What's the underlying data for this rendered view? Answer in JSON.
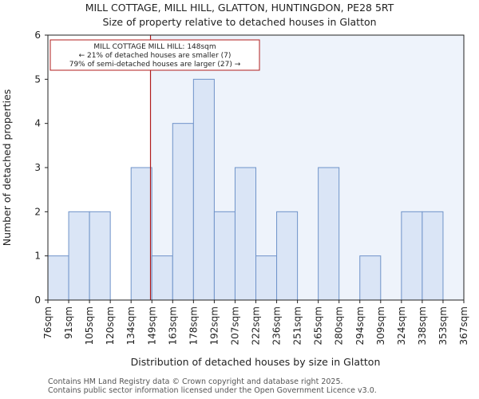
{
  "chart_data": {
    "type": "bar",
    "title": "MILL COTTAGE, MILL HILL, GLATTON, HUNTINGDON, PE28 5RT",
    "subtitle": "Size of property relative to detached houses in Glatton",
    "xlabel": "Distribution of detached houses by size in Glatton",
    "ylabel": "Number of detached properties",
    "x_tick_labels": [
      "76sqm",
      "91sqm",
      "105sqm",
      "120sqm",
      "134sqm",
      "149sqm",
      "163sqm",
      "178sqm",
      "192sqm",
      "207sqm",
      "222sqm",
      "236sqm",
      "251sqm",
      "265sqm",
      "280sqm",
      "294sqm",
      "309sqm",
      "324sqm",
      "338sqm",
      "353sqm",
      "367sqm"
    ],
    "bin_edges": [
      76,
      91,
      105,
      120,
      134,
      149,
      163,
      178,
      192,
      207,
      222,
      236,
      251,
      265,
      280,
      294,
      309,
      324,
      338,
      353,
      367
    ],
    "values": [
      1,
      2,
      2,
      0,
      3,
      1,
      4,
      5,
      2,
      3,
      1,
      2,
      0,
      3,
      0,
      1,
      0,
      2,
      2,
      0
    ],
    "ylim": [
      0,
      6
    ],
    "y_ticks": [
      0,
      1,
      2,
      3,
      4,
      5,
      6
    ],
    "grid": false,
    "marker": {
      "value": 148,
      "color": "#b01c1c"
    },
    "annotation": {
      "lines": [
        "MILL COTTAGE MILL HILL: 148sqm",
        "← 21% of detached houses are smaller (7)",
        "79% of semi-detached houses are larger (27) →"
      ],
      "border_color": "#b01c1c"
    },
    "colors": {
      "bar_fill": "#dae5f6",
      "bar_stroke": "#6f93c9",
      "highlight_region": "#eef3fb",
      "axis": "#222222"
    }
  },
  "footer": {
    "line1": "Contains HM Land Registry data © Crown copyright and database right 2025.",
    "line2": "Contains public sector information licensed under the Open Government Licence v3.0."
  }
}
